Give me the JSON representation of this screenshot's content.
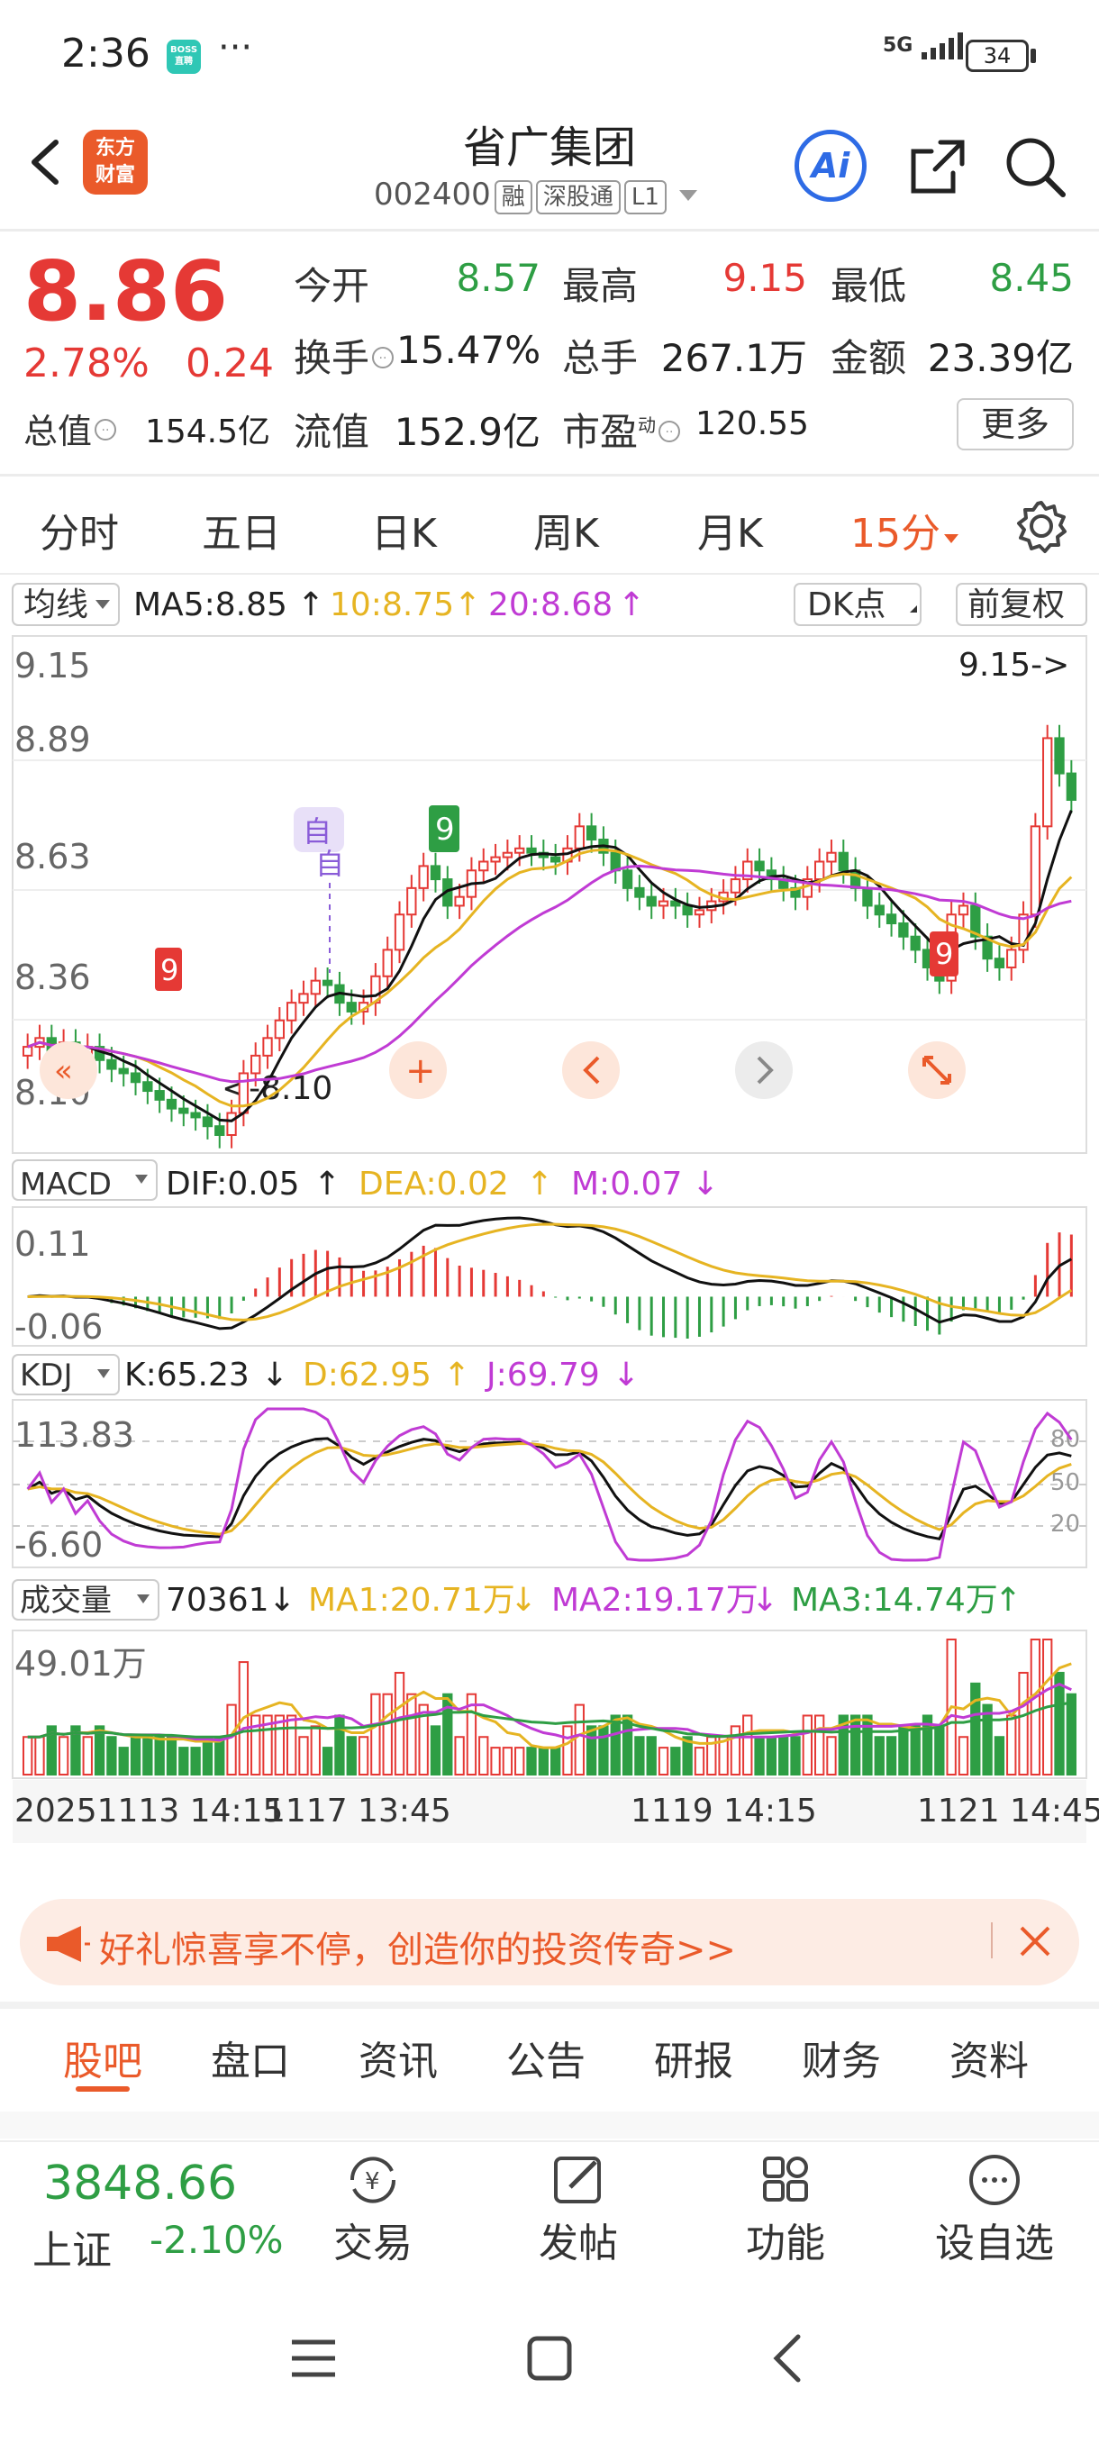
{
  "status": {
    "time": "2:36",
    "app_icon": "BOSS直聘",
    "app_icon_text": "BOSS\n直聘",
    "more": "···",
    "signal": "5G",
    "battery": "34"
  },
  "header": {
    "logo": "东方财富",
    "logo_line1": "东方",
    "logo_line2": "财富",
    "stock_name": "省广集团",
    "code": "002400",
    "tags": [
      "融",
      "深股通",
      "L1"
    ],
    "ai_label": "Ai"
  },
  "quote": {
    "price": "8.86",
    "change_pct": "2.78%",
    "change": "0.24",
    "open_label": "今开",
    "open": "8.57",
    "high_label": "最高",
    "high": "9.15",
    "low_label": "最低",
    "low": "8.45",
    "turnover_label": "换手",
    "turnover": "15.47%",
    "volume_label": "总手",
    "volume": "267.1万",
    "amount_label": "金额",
    "amount": "23.39亿",
    "mktcap_label": "总值",
    "mktcap": "154.5亿",
    "float_label": "流值",
    "float": "152.9亿",
    "pe_label": "市盈",
    "pe_super": "动",
    "pe": "120.55",
    "more_label": "更多"
  },
  "period_tabs": [
    "分时",
    "五日",
    "日K",
    "周K",
    "月K",
    "15分"
  ],
  "chart_data": [
    {
      "type": "candlestick",
      "title": "",
      "ma_label": "均线",
      "ma_values": {
        "ma5": "MA5:8.85",
        "ma10": "10:8.75",
        "ma20": "20:8.68"
      },
      "dk_label": "DK点",
      "fq_label": "前复权",
      "y_ticks": [
        "9.15",
        "8.89",
        "8.63",
        "8.36",
        "8.10"
      ],
      "ylim": [
        8.1,
        9.15
      ],
      "high_marker": "9.15->",
      "low_marker": "<-8.10",
      "signal_label": "自",
      "x_ticks": [
        "20251113 14:15",
        "1117 13:45",
        "1119 14:15",
        "1121 14:45"
      ],
      "closes": [
        8.3,
        8.32,
        8.29,
        8.31,
        8.28,
        8.3,
        8.27,
        8.25,
        8.24,
        8.22,
        8.2,
        8.18,
        8.16,
        8.15,
        8.14,
        8.12,
        8.1,
        8.15,
        8.24,
        8.28,
        8.32,
        8.36,
        8.4,
        8.42,
        8.45,
        8.44,
        8.4,
        8.38,
        8.4,
        8.46,
        8.52,
        8.6,
        8.66,
        8.71,
        8.68,
        8.62,
        8.64,
        8.7,
        8.72,
        8.73,
        8.74,
        8.75,
        8.74,
        8.73,
        8.72,
        8.75,
        8.8,
        8.77,
        8.74,
        8.7,
        8.66,
        8.64,
        8.62,
        8.63,
        8.62,
        8.6,
        8.61,
        8.63,
        8.65,
        8.68,
        8.72,
        8.7,
        8.68,
        8.66,
        8.64,
        8.68,
        8.72,
        8.74,
        8.7,
        8.66,
        8.62,
        8.6,
        8.58,
        8.55,
        8.52,
        8.48,
        8.45,
        8.6,
        8.62,
        8.55,
        8.5,
        8.48,
        8.52,
        8.6,
        8.8,
        9.0,
        8.92,
        8.86
      ]
    },
    {
      "type": "bar",
      "title": "MACD",
      "labels": {
        "dif": "DIF:0.05",
        "dea": "DEA:0.02",
        "m": "M:0.07"
      },
      "y_ticks": [
        "0.11",
        "-0.06"
      ]
    },
    {
      "type": "line",
      "title": "KDJ",
      "labels": {
        "k": "K:65.23",
        "d": "D:62.95",
        "j": "J:69.79"
      },
      "y_ticks": [
        "113.83",
        "-6.60"
      ],
      "ref_lines": [
        "80",
        "50",
        "20"
      ]
    },
    {
      "type": "bar",
      "title": "成交量",
      "labels": {
        "vol": "70361",
        "ma1": "MA1:20.71万",
        "ma2": "MA2:19.17万",
        "ma3": "MA3:14.74万"
      },
      "y_ticks": [
        "49.01万"
      ]
    }
  ],
  "promo": {
    "text": "好礼惊喜享不停，创造你的投资传奇>>"
  },
  "bottom_tabs": [
    "股吧",
    "盘口",
    "资讯",
    "公告",
    "研报",
    "财务",
    "资料"
  ],
  "toolbar": {
    "index_value": "3848.66",
    "index_name": "上证",
    "index_pct": "-2.10%",
    "trade": "交易",
    "post": "发帖",
    "functions": "功能",
    "watchlist": "设自选"
  },
  "colors": {
    "up": "#e53935",
    "down": "#2e9e44",
    "brand": "#ea5a2a",
    "ma10": "#e6b422",
    "ma20": "#c03bd4"
  }
}
